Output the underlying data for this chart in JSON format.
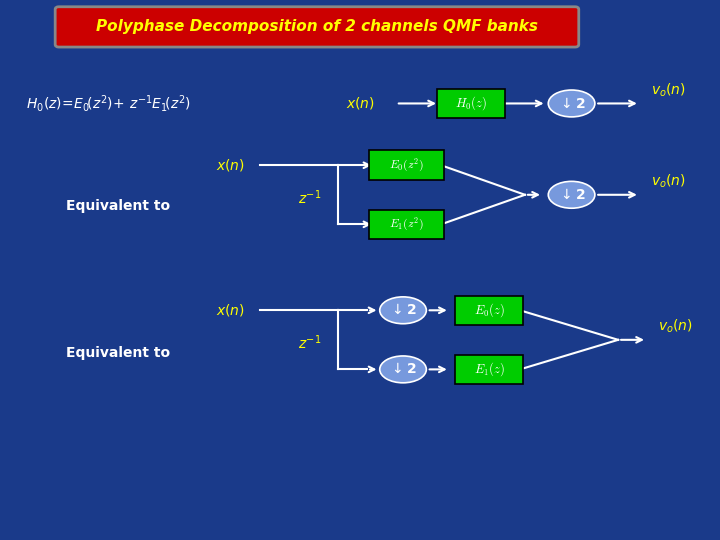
{
  "title": "Polyphase Decomposition of 2 channels QMF banks",
  "title_bg": "#cc0000",
  "title_fg": "#ffff00",
  "bg_color": "#1a3a8a",
  "text_color": "#ffff00",
  "white": "#ffffff",
  "green_box": "#00cc00",
  "blue_ellipse": "#7799dd",
  "formula": "$H_0(z) = E_0(z^2) + z^{-1}E_1(z^2)$",
  "label_color": "#ffff00",
  "equiv_color": "#ffffff"
}
